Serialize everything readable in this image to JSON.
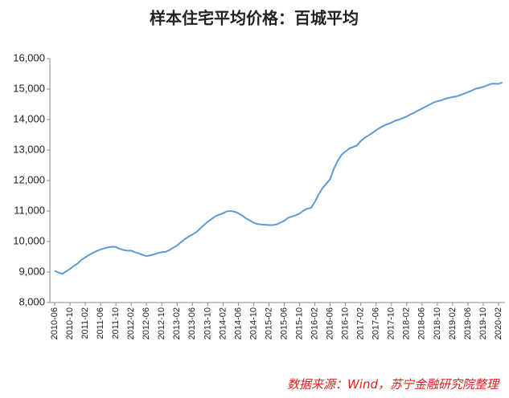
{
  "chart_data": {
    "type": "line",
    "title": "样本住宅平均价格：百城平均",
    "source": "数据来源：Wind，苏宁金融研究院整理",
    "categories": [
      "2010-06",
      null,
      null,
      null,
      "2010-10",
      null,
      null,
      null,
      "2011-02",
      null,
      null,
      null,
      "2011-06",
      null,
      null,
      null,
      "2011-10",
      null,
      null,
      null,
      "2012-02",
      null,
      null,
      null,
      "2012-06",
      null,
      null,
      null,
      "2012-10",
      null,
      null,
      null,
      "2013-02",
      null,
      null,
      null,
      "2013-06",
      null,
      null,
      null,
      "2013-10",
      null,
      null,
      null,
      "2014-02",
      null,
      null,
      null,
      "2014-06",
      null,
      null,
      null,
      "2014-10",
      null,
      null,
      null,
      "2015-02",
      null,
      null,
      null,
      "2015-06",
      null,
      null,
      null,
      "2015-10",
      null,
      null,
      null,
      "2016-02",
      null,
      null,
      null,
      "2016-06",
      null,
      null,
      null,
      "2016-10",
      null,
      null,
      null,
      "2017-02",
      null,
      null,
      null,
      "2017-06",
      null,
      null,
      null,
      "2017-10",
      null,
      null,
      null,
      "2018-02",
      null,
      null,
      null,
      "2018-06",
      null,
      null,
      null,
      "2018-10",
      null,
      null,
      null,
      "2019-02",
      null,
      null,
      null,
      "2019-06",
      null,
      null,
      null,
      "2019-10",
      null,
      null,
      null,
      "2020-02",
      null
    ],
    "series": [
      {
        "color": "#5b9bd5",
        "values": [
          9040,
          8980,
          8940,
          9020,
          9100,
          9200,
          9280,
          9400,
          9480,
          9560,
          9630,
          9690,
          9740,
          9780,
          9810,
          9830,
          9820,
          9760,
          9720,
          9700,
          9700,
          9650,
          9610,
          9560,
          9520,
          9550,
          9580,
          9620,
          9650,
          9660,
          9720,
          9800,
          9870,
          9980,
          10080,
          10160,
          10230,
          10310,
          10420,
          10540,
          10650,
          10740,
          10830,
          10880,
          10930,
          10990,
          11000,
          10980,
          10930,
          10850,
          10760,
          10690,
          10620,
          10570,
          10560,
          10550,
          10540,
          10540,
          10560,
          10620,
          10680,
          10780,
          10820,
          10860,
          10920,
          11010,
          11080,
          11100,
          11300,
          11550,
          11750,
          11900,
          12050,
          12400,
          12650,
          12850,
          12950,
          13050,
          13100,
          13150,
          13300,
          13400,
          13480,
          13560,
          13650,
          13730,
          13800,
          13850,
          13900,
          13960,
          14000,
          14050,
          14100,
          14170,
          14230,
          14300,
          14360,
          14430,
          14490,
          14560,
          14600,
          14630,
          14680,
          14710,
          14740,
          14760,
          14800,
          14850,
          14900,
          14950,
          15010,
          15040,
          15070,
          15120,
          15170,
          15180,
          15170,
          15220
        ]
      }
    ],
    "ylim": [
      8000,
      16000
    ],
    "yticks": [
      {
        "value": 8000,
        "label": "8,000"
      },
      {
        "value": 9000,
        "label": "9,000"
      },
      {
        "value": 10000,
        "label": "10,000"
      },
      {
        "value": 11000,
        "label": "11,000"
      },
      {
        "value": 12000,
        "label": "12,000"
      },
      {
        "value": 13000,
        "label": "13,000"
      },
      {
        "value": 14000,
        "label": "14,000"
      },
      {
        "value": 15000,
        "label": "15,000"
      },
      {
        "value": 16000,
        "label": "16,000"
      }
    ],
    "grid": false
  }
}
